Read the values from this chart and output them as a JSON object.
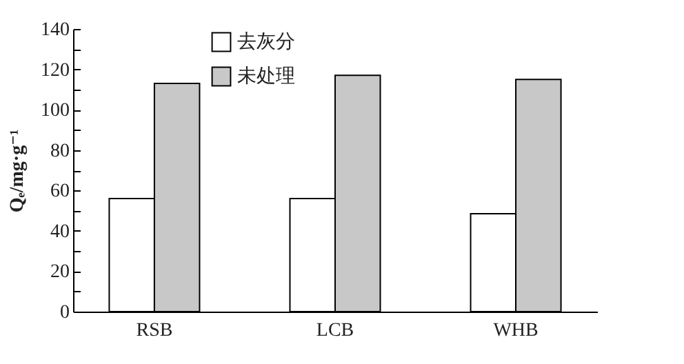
{
  "chart_data": {
    "type": "bar",
    "ylabel": "Qₑ/mg·g⁻¹",
    "categories": [
      "RSB",
      "LCB",
      "WHB"
    ],
    "series": [
      {
        "name": "去灰分",
        "color": "#ffffff",
        "values": [
          56,
          56,
          48.5
        ]
      },
      {
        "name": "未处理",
        "color": "#c8c8c8",
        "values": [
          113,
          117,
          115
        ]
      }
    ],
    "ylim": [
      0,
      140
    ],
    "yticks": [
      0,
      {
        "value": 10,
        "label": null
      },
      20,
      {
        "value": 30,
        "label": null
      },
      40,
      {
        "value": 50,
        "label": null
      },
      60,
      {
        "value": 70,
        "label": null
      },
      80,
      {
        "value": 90,
        "label": null
      },
      100,
      {
        "value": 110,
        "label": null
      },
      120,
      {
        "value": 130,
        "label": null
      },
      140
    ],
    "grid": false,
    "legend": "top left"
  }
}
